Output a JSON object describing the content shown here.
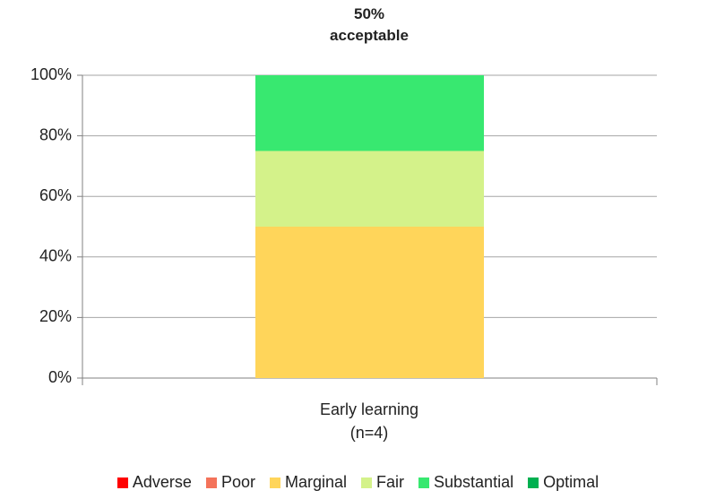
{
  "chart_data": {
    "type": "stacked-bar",
    "annotation": "50%\nacceptable",
    "categories": [
      "Early learning\n(n=4)"
    ],
    "series": [
      {
        "name": "Adverse",
        "color": "#ff0000",
        "values": [
          0
        ]
      },
      {
        "name": "Poor",
        "color": "#f4735a",
        "values": [
          0
        ]
      },
      {
        "name": "Marginal",
        "color": "#ffd55a",
        "values": [
          50
        ]
      },
      {
        "name": "Fair",
        "color": "#d4f28a",
        "values": [
          25
        ]
      },
      {
        "name": "Substantial",
        "color": "#38e870",
        "values": [
          25
        ]
      },
      {
        "name": "Optimal",
        "color": "#00b050",
        "values": [
          0
        ]
      }
    ],
    "ylim": [
      0,
      100
    ],
    "yticks": [
      {
        "value": 0,
        "label": "0%"
      },
      {
        "value": 20,
        "label": "20%"
      },
      {
        "value": 40,
        "label": "40%"
      },
      {
        "value": 60,
        "label": "60%"
      },
      {
        "value": 80,
        "label": "80%"
      },
      {
        "value": 100,
        "label": "100%"
      }
    ],
    "grid": true,
    "legend": "bottom"
  }
}
